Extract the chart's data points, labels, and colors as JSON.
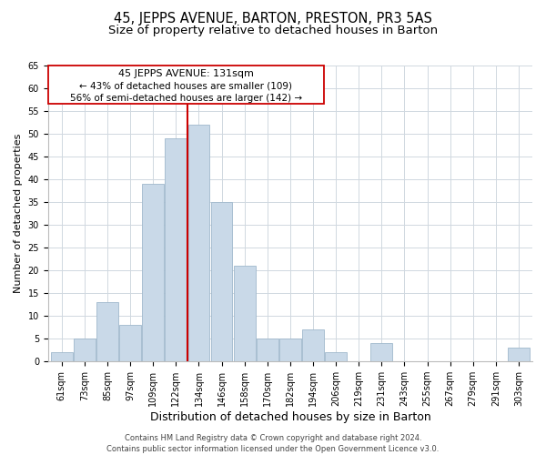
{
  "title": "45, JEPPS AVENUE, BARTON, PRESTON, PR3 5AS",
  "subtitle": "Size of property relative to detached houses in Barton",
  "xlabel": "Distribution of detached houses by size in Barton",
  "ylabel": "Number of detached properties",
  "bar_labels": [
    "61sqm",
    "73sqm",
    "85sqm",
    "97sqm",
    "109sqm",
    "122sqm",
    "134sqm",
    "146sqm",
    "158sqm",
    "170sqm",
    "182sqm",
    "194sqm",
    "206sqm",
    "219sqm",
    "231sqm",
    "243sqm",
    "255sqm",
    "267sqm",
    "279sqm",
    "291sqm",
    "303sqm"
  ],
  "bar_values": [
    2,
    5,
    13,
    8,
    39,
    49,
    52,
    35,
    21,
    5,
    5,
    7,
    2,
    0,
    4,
    0,
    0,
    0,
    0,
    0,
    3
  ],
  "bar_color": "#c9d9e8",
  "bar_edge_color": "#a0b8cc",
  "highlight_line_color": "#cc0000",
  "highlight_line_index": 6,
  "ylim": [
    0,
    65
  ],
  "yticks": [
    0,
    5,
    10,
    15,
    20,
    25,
    30,
    35,
    40,
    45,
    50,
    55,
    60,
    65
  ],
  "annotation_title": "45 JEPPS AVENUE: 131sqm",
  "annotation_line1": "← 43% of detached houses are smaller (109)",
  "annotation_line2": "56% of semi-detached houses are larger (142) →",
  "footer_line1": "Contains HM Land Registry data © Crown copyright and database right 2024.",
  "footer_line2": "Contains public sector information licensed under the Open Government Licence v3.0.",
  "background_color": "#ffffff",
  "grid_color": "#d0d8e0",
  "title_fontsize": 10.5,
  "subtitle_fontsize": 9.5,
  "xlabel_fontsize": 9,
  "ylabel_fontsize": 8,
  "tick_fontsize": 7,
  "annotation_fontsize_title": 8,
  "annotation_fontsize_body": 7.5,
  "footer_fontsize": 6
}
